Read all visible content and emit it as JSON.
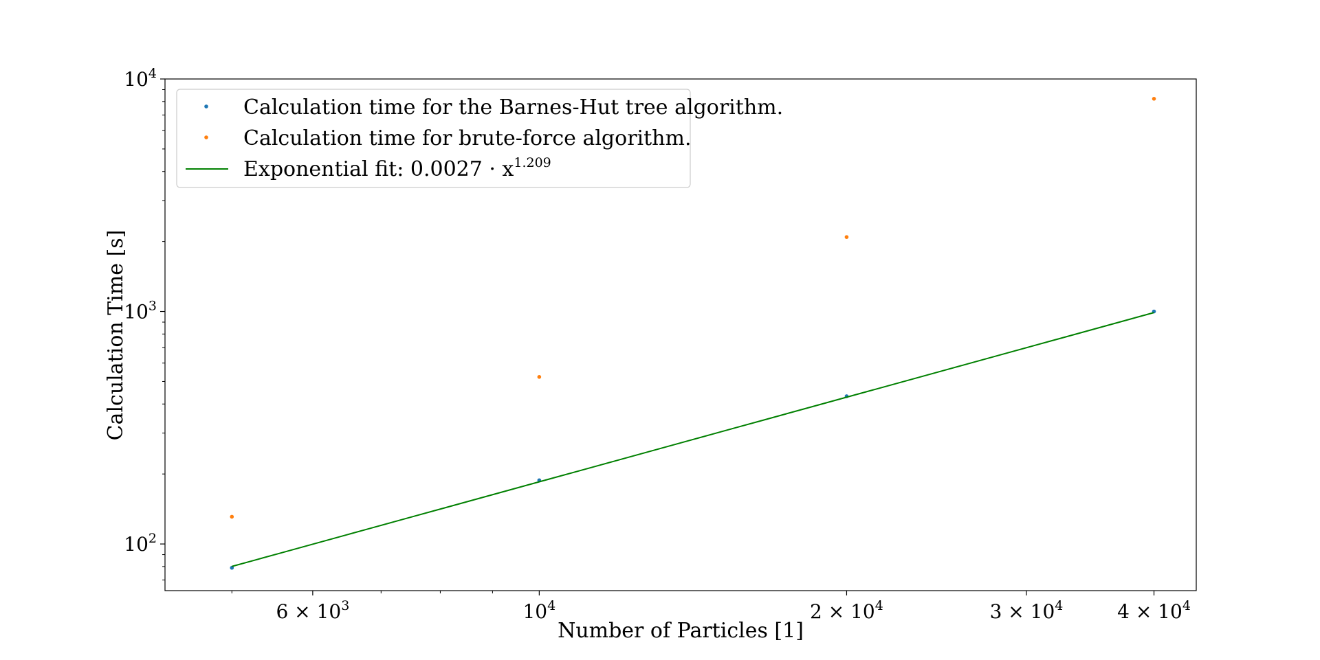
{
  "chart_data": {
    "type": "scatter",
    "title": "",
    "xlabel": "Number of Particles [1]",
    "ylabel": "Calculation Time [s]",
    "xscale": "log",
    "yscale": "log",
    "xlim": [
      4300,
      44000
    ],
    "ylim": [
      63,
      10000
    ],
    "grid": false,
    "legend_position": "top-left",
    "x_ticks": [
      {
        "value": 6000,
        "mantissa": "6",
        "times": "×",
        "base": "10",
        "exp": "3"
      },
      {
        "value": 10000,
        "mantissa": "",
        "times": "",
        "base": "10",
        "exp": "4"
      },
      {
        "value": 20000,
        "mantissa": "2",
        "times": "×",
        "base": "10",
        "exp": "4"
      },
      {
        "value": 30000,
        "mantissa": "3",
        "times": "×",
        "base": "10",
        "exp": "4"
      },
      {
        "value": 40000,
        "mantissa": "4",
        "times": "×",
        "base": "10",
        "exp": "4"
      }
    ],
    "y_ticks": [
      {
        "value": 100,
        "base": "10",
        "exp": "2"
      },
      {
        "value": 1000,
        "base": "10",
        "exp": "3"
      },
      {
        "value": 10000,
        "base": "10",
        "exp": "4"
      }
    ],
    "series": [
      {
        "name": "Calculation time for the Barnes-Hut tree algorithm.",
        "kind": "points",
        "color": "#1f77b4",
        "x": [
          5000,
          10000,
          20000,
          40000
        ],
        "y": [
          79,
          188,
          432,
          1000
        ]
      },
      {
        "name": "Calculation time for brute-force algorithm.",
        "kind": "points",
        "color": "#ff7f0e",
        "x": [
          5000,
          10000,
          20000,
          40000
        ],
        "y": [
          131,
          523,
          2090,
          8220
        ]
      },
      {
        "name": "Exponential fit: 0.0027 · x^1.209",
        "label_main": "Exponential fit: 0.0027 · x",
        "label_exp": "1.209",
        "kind": "line",
        "color": "#008000",
        "coefficient": 0.0027,
        "exponent": 1.209,
        "x": [
          5000,
          40000
        ]
      }
    ]
  }
}
